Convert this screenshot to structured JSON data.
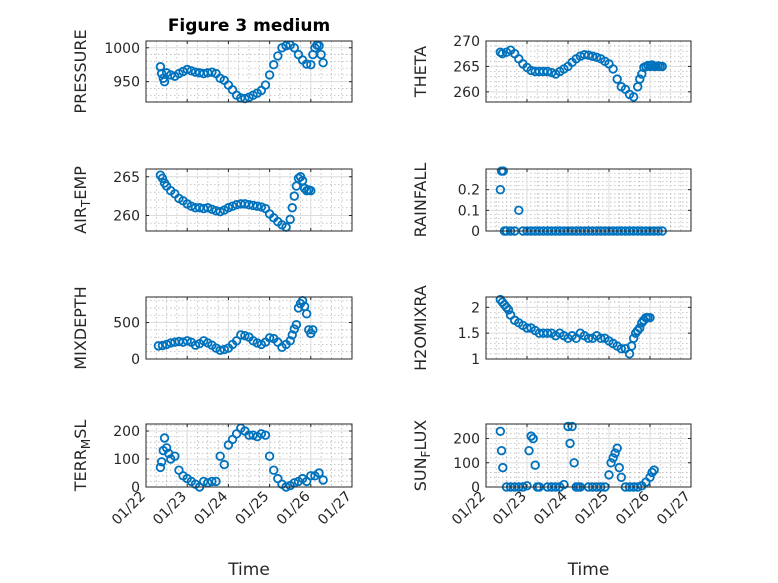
{
  "chart_data": [
    {
      "id": "pressure",
      "type": "scatter",
      "title": "Figure 3 medium",
      "ylabel": "PRESSURE",
      "xlim": [
        0,
        5
      ],
      "ylim": [
        920,
        1010
      ],
      "yticks": [
        950,
        1000
      ],
      "ytick_labels": [
        "950",
        "1000"
      ],
      "xtick_labels": [],
      "xlabel": "",
      "x": [
        0.35,
        0.38,
        0.42,
        0.45,
        0.5,
        0.6,
        0.7,
        0.8,
        0.9,
        1.0,
        1.1,
        1.2,
        1.3,
        1.4,
        1.5,
        1.6,
        1.7,
        1.8,
        1.9,
        2.0,
        2.1,
        2.2,
        2.3,
        2.4,
        2.5,
        2.6,
        2.7,
        2.8,
        2.9,
        3.0,
        3.1,
        3.2,
        3.3,
        3.4,
        3.5,
        3.6,
        3.7,
        3.8,
        3.9,
        4.0,
        4.05,
        4.1,
        4.15,
        4.2,
        4.25,
        4.3
      ],
      "y": [
        972,
        962,
        955,
        950,
        963,
        960,
        958,
        962,
        965,
        968,
        966,
        964,
        963,
        962,
        963,
        964,
        962,
        955,
        952,
        945,
        938,
        930,
        926,
        925,
        927,
        930,
        933,
        937,
        945,
        960,
        975,
        988,
        1000,
        1003,
        1004,
        1000,
        990,
        982,
        976,
        975,
        990,
        1000,
        1004,
        1003,
        990,
        978
      ]
    },
    {
      "id": "theta",
      "type": "scatter",
      "title": "",
      "ylabel": "THETA",
      "xlim": [
        0,
        5
      ],
      "ylim": [
        258,
        270
      ],
      "yticks": [
        260,
        265,
        270
      ],
      "ytick_labels": [
        "260",
        "265",
        "270"
      ],
      "xtick_labels": [],
      "xlabel": "",
      "x": [
        0.35,
        0.4,
        0.5,
        0.6,
        0.7,
        0.8,
        0.9,
        1.0,
        1.1,
        1.2,
        1.3,
        1.4,
        1.5,
        1.6,
        1.7,
        1.8,
        1.9,
        2.0,
        2.1,
        2.2,
        2.3,
        2.4,
        2.5,
        2.6,
        2.7,
        2.8,
        2.9,
        3.0,
        3.1,
        3.2,
        3.3,
        3.4,
        3.5,
        3.6,
        3.7,
        3.75,
        3.8,
        3.85,
        3.9,
        3.95,
        4.0,
        4.05,
        4.1,
        4.15,
        4.2,
        4.25,
        4.3
      ],
      "y": [
        267.8,
        267.5,
        267.8,
        268.2,
        267.5,
        266.5,
        265.5,
        264.8,
        264.2,
        264.0,
        264.0,
        264.0,
        264.0,
        263.8,
        263.5,
        264.0,
        264.5,
        265.0,
        265.8,
        266.5,
        267.0,
        267.3,
        267.2,
        267.0,
        266.8,
        266.5,
        266.0,
        265.5,
        264.5,
        262.5,
        261.0,
        260.5,
        259.5,
        259.0,
        261.0,
        262.5,
        263.5,
        264.8,
        265.0,
        265.2,
        265.0,
        265.3,
        265.0,
        265.0,
        265.1,
        265.0,
        265.0
      ]
    },
    {
      "id": "air_temp",
      "type": "scatter",
      "title": "",
      "ylabel": "AIR_TEMP",
      "xlim": [
        0,
        5
      ],
      "ylim": [
        258,
        266
      ],
      "yticks": [
        260,
        265
      ],
      "ytick_labels": [
        "260",
        "265"
      ],
      "xtick_labels": [],
      "xlabel": "",
      "x": [
        0.35,
        0.4,
        0.45,
        0.5,
        0.6,
        0.7,
        0.8,
        0.9,
        1.0,
        1.1,
        1.2,
        1.3,
        1.4,
        1.5,
        1.6,
        1.7,
        1.8,
        1.9,
        2.0,
        2.1,
        2.2,
        2.3,
        2.4,
        2.5,
        2.6,
        2.7,
        2.8,
        2.9,
        3.0,
        3.1,
        3.2,
        3.3,
        3.4,
        3.5,
        3.55,
        3.6,
        3.65,
        3.7,
        3.75,
        3.8,
        3.85,
        3.9,
        3.95,
        4.0
      ],
      "y": [
        265.2,
        264.8,
        264.2,
        263.8,
        263.2,
        262.8,
        262.2,
        261.9,
        261.5,
        261.2,
        261.0,
        261.0,
        260.9,
        261.0,
        260.8,
        260.6,
        260.5,
        260.7,
        261.0,
        261.2,
        261.4,
        261.5,
        261.5,
        261.4,
        261.3,
        261.2,
        261.1,
        260.9,
        260.2,
        259.7,
        259.2,
        258.8,
        258.5,
        259.5,
        261.0,
        262.5,
        263.8,
        264.8,
        265.0,
        264.5,
        263.5,
        263.2,
        263.3,
        263.2
      ]
    },
    {
      "id": "rainfall",
      "type": "scatter",
      "title": "",
      "ylabel": "RAINFALL",
      "xlim": [
        0,
        5
      ],
      "ylim": [
        0,
        0.3
      ],
      "yticks": [
        0,
        0.1,
        0.2
      ],
      "ytick_labels": [
        "0",
        "0.1",
        "0.2"
      ],
      "xtick_labels": [],
      "xlabel": "",
      "x": [
        0.35,
        0.38,
        0.42,
        0.45,
        0.5,
        0.6,
        0.7,
        0.8,
        0.9,
        1.0,
        1.1,
        1.2,
        1.3,
        1.4,
        1.5,
        1.6,
        1.7,
        1.8,
        1.9,
        2.0,
        2.1,
        2.2,
        2.3,
        2.4,
        2.5,
        2.6,
        2.7,
        2.8,
        2.9,
        3.0,
        3.1,
        3.2,
        3.3,
        3.4,
        3.5,
        3.6,
        3.7,
        3.8,
        3.9,
        4.0,
        4.1,
        4.2,
        4.3
      ],
      "y": [
        0.2,
        0.29,
        0.29,
        0,
        0,
        0,
        0,
        0.1,
        0,
        0,
        0,
        0,
        0,
        0,
        0,
        0,
        0,
        0,
        0,
        0,
        0,
        0,
        0,
        0,
        0,
        0,
        0,
        0,
        0,
        0,
        0,
        0,
        0,
        0,
        0,
        0,
        0,
        0,
        0,
        0,
        0,
        0,
        0
      ]
    },
    {
      "id": "mixdepth",
      "type": "scatter",
      "title": "",
      "ylabel": "MIXDEPTH",
      "xlim": [
        0,
        5
      ],
      "ylim": [
        0,
        850
      ],
      "yticks": [
        0,
        500
      ],
      "ytick_labels": [
        "0",
        "500"
      ],
      "xtick_labels": [],
      "xlabel": "",
      "x": [
        0.3,
        0.4,
        0.5,
        0.6,
        0.7,
        0.8,
        0.9,
        1.0,
        1.1,
        1.2,
        1.3,
        1.4,
        1.5,
        1.6,
        1.7,
        1.8,
        1.9,
        2.0,
        2.1,
        2.2,
        2.3,
        2.4,
        2.5,
        2.6,
        2.7,
        2.8,
        2.9,
        3.0,
        3.1,
        3.2,
        3.3,
        3.4,
        3.5,
        3.55,
        3.6,
        3.65,
        3.7,
        3.75,
        3.8,
        3.85,
        3.9,
        3.95,
        4.0,
        4.05
      ],
      "y": [
        180,
        185,
        200,
        220,
        230,
        240,
        230,
        250,
        230,
        190,
        210,
        250,
        220,
        190,
        150,
        120,
        130,
        150,
        200,
        250,
        330,
        320,
        300,
        250,
        220,
        200,
        230,
        290,
        280,
        230,
        160,
        200,
        250,
        330,
        410,
        470,
        700,
        760,
        800,
        720,
        620,
        400,
        350,
        400
      ]
    },
    {
      "id": "h2omixra",
      "type": "scatter",
      "title": "",
      "ylabel": "H2OMIXRA",
      "xlim": [
        0,
        5
      ],
      "ylim": [
        1,
        2.2
      ],
      "yticks": [
        1,
        1.5,
        2
      ],
      "ytick_labels": [
        "1",
        "1.5",
        "2"
      ],
      "xtick_labels": [],
      "xlabel": "",
      "x": [
        0.35,
        0.4,
        0.45,
        0.5,
        0.55,
        0.6,
        0.7,
        0.8,
        0.9,
        1.0,
        1.1,
        1.2,
        1.3,
        1.4,
        1.5,
        1.6,
        1.7,
        1.8,
        1.9,
        2.0,
        2.1,
        2.2,
        2.3,
        2.4,
        2.5,
        2.6,
        2.7,
        2.8,
        2.9,
        3.0,
        3.1,
        3.2,
        3.3,
        3.4,
        3.5,
        3.55,
        3.6,
        3.65,
        3.7,
        3.75,
        3.8,
        3.85,
        3.9,
        3.95,
        4.0
      ],
      "y": [
        2.15,
        2.1,
        2.05,
        2.0,
        1.95,
        1.85,
        1.75,
        1.7,
        1.65,
        1.6,
        1.6,
        1.55,
        1.5,
        1.5,
        1.5,
        1.5,
        1.45,
        1.5,
        1.45,
        1.4,
        1.45,
        1.4,
        1.5,
        1.45,
        1.4,
        1.4,
        1.45,
        1.4,
        1.4,
        1.35,
        1.3,
        1.25,
        1.2,
        1.2,
        1.1,
        1.25,
        1.4,
        1.5,
        1.55,
        1.6,
        1.7,
        1.75,
        1.8,
        1.8,
        1.8
      ]
    },
    {
      "id": "terr_msl",
      "type": "scatter",
      "title": "",
      "ylabel": "TERR_MSL",
      "xlim": [
        0,
        5
      ],
      "ylim": [
        0,
        225
      ],
      "yticks": [
        0,
        100,
        200
      ],
      "ytick_labels": [
        "0",
        "100",
        "200"
      ],
      "xtick_labels": [
        "01/22",
        "01/23",
        "01/24",
        "01/25",
        "01/26",
        "01/27"
      ],
      "xlabel": "Time",
      "x": [
        0.35,
        0.38,
        0.42,
        0.45,
        0.5,
        0.55,
        0.6,
        0.7,
        0.8,
        0.9,
        1.0,
        1.1,
        1.2,
        1.3,
        1.4,
        1.5,
        1.6,
        1.7,
        1.8,
        1.9,
        2.0,
        2.1,
        2.2,
        2.3,
        2.4,
        2.5,
        2.6,
        2.7,
        2.8,
        2.9,
        3.0,
        3.1,
        3.2,
        3.3,
        3.4,
        3.5,
        3.6,
        3.7,
        3.8,
        3.9,
        4.0,
        4.1,
        4.2,
        4.3
      ],
      "y": [
        70,
        90,
        130,
        175,
        140,
        120,
        100,
        110,
        60,
        40,
        30,
        20,
        10,
        0,
        20,
        15,
        20,
        20,
        110,
        80,
        150,
        170,
        190,
        210,
        200,
        185,
        185,
        180,
        190,
        185,
        110,
        60,
        30,
        10,
        0,
        5,
        15,
        20,
        30,
        20,
        40,
        40,
        50,
        25
      ]
    },
    {
      "id": "sun_flux",
      "type": "scatter",
      "title": "",
      "ylabel": "SUN_FLUX",
      "xlim": [
        0,
        5
      ],
      "ylim": [
        0,
        260
      ],
      "yticks": [
        0,
        100,
        200
      ],
      "ytick_labels": [
        "0",
        "100",
        "200"
      ],
      "xtick_labels": [
        "01/22",
        "01/23",
        "01/24",
        "01/25",
        "01/26",
        "01/27"
      ],
      "xlabel": "Time",
      "x": [
        0.35,
        0.38,
        0.41,
        0.5,
        0.6,
        0.7,
        0.8,
        0.9,
        1.0,
        1.05,
        1.1,
        1.15,
        1.2,
        1.25,
        1.3,
        1.5,
        1.6,
        1.7,
        1.8,
        1.9,
        2.0,
        2.05,
        2.1,
        2.15,
        2.2,
        2.25,
        2.3,
        2.5,
        2.6,
        2.7,
        2.8,
        2.9,
        3.0,
        3.05,
        3.1,
        3.15,
        3.2,
        3.25,
        3.3,
        3.4,
        3.5,
        3.6,
        3.7,
        3.8,
        3.9,
        4.0,
        4.05,
        4.1
      ],
      "y": [
        230,
        150,
        80,
        0,
        0,
        0,
        0,
        0,
        5,
        150,
        210,
        200,
        90,
        0,
        0,
        0,
        0,
        0,
        0,
        10,
        250,
        180,
        250,
        100,
        0,
        0,
        0,
        0,
        0,
        0,
        0,
        0,
        50,
        100,
        120,
        140,
        160,
        80,
        40,
        0,
        0,
        0,
        0,
        5,
        20,
        40,
        60,
        70
      ]
    }
  ]
}
